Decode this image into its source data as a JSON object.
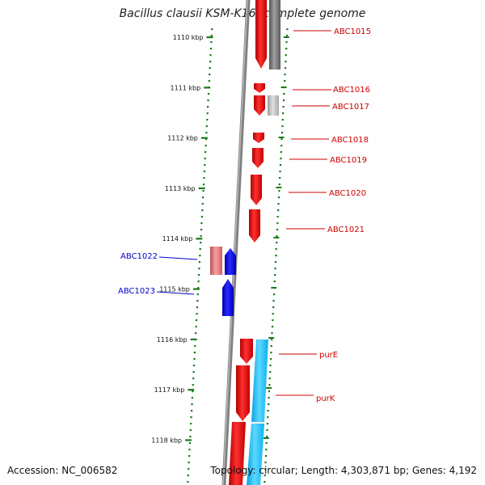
{
  "title": "Bacillus clausii KSM-K16, complete genome",
  "footer": {
    "accession": "Accession: NC_006582",
    "summary": "Topology: circular; Length: 4,303,871 bp; Genes: 4,192"
  },
  "colors": {
    "forward_gene": "#ff0000",
    "reverse_gene": "#0000ff",
    "pseudo_gray": "#808080",
    "pink": "#e88080",
    "cyan": "#1ec8ff",
    "axis": "#808080",
    "tick": "#1a7a1a",
    "label_right": "#cc0000",
    "label_left": "#0000cc"
  },
  "ticks": [
    "1110 kbp",
    "1111 kbp",
    "1112 kbp",
    "1113 kbp",
    "1114 kbp",
    "1115 kbp",
    "1116 kbp",
    "1117 kbp",
    "1118 kbp"
  ],
  "genes_right": [
    {
      "name": "ABC1015"
    },
    {
      "name": "ABC1016"
    },
    {
      "name": "ABC1017"
    },
    {
      "name": "ABC1018"
    },
    {
      "name": "ABC1019"
    },
    {
      "name": "ABC1020"
    },
    {
      "name": "ABC1021"
    },
    {
      "name": "purE"
    },
    {
      "name": "purK"
    }
  ],
  "genes_left": [
    {
      "name": "ABC1022"
    },
    {
      "name": "ABC1023"
    }
  ]
}
